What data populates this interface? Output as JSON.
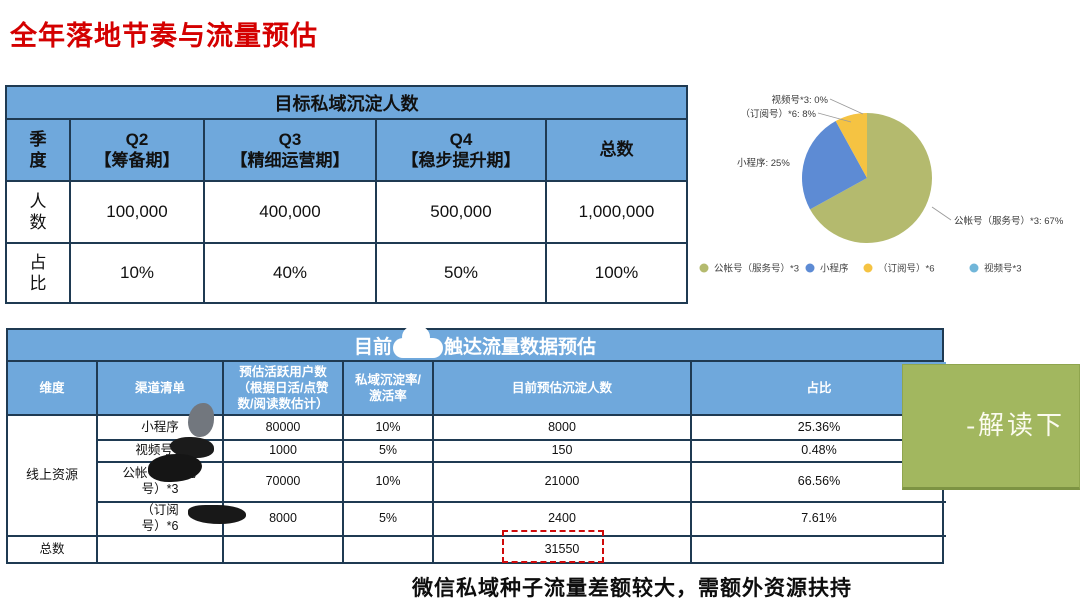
{
  "page_title": "全年落地节奏与流量预估",
  "colors": {
    "accent_blue": "#6fa8dc",
    "table_border": "#1f3a52",
    "title_red": "#d40000",
    "green_box": "#a2b75f",
    "dashed_red": "#cf0a0a"
  },
  "table1": {
    "title": "目标私域沉淀人数",
    "corner_header": "季\n度",
    "col_headers": [
      "Q2\n【筹备期】",
      "Q3\n【精细运营期】",
      "Q4\n【稳步提升期】",
      "总数"
    ],
    "rows": [
      {
        "label": "人\n数",
        "values": [
          "100,000",
          "400,000",
          "500,000",
          "1,000,000"
        ]
      },
      {
        "label": "占\n比",
        "values": [
          "10%",
          "40%",
          "50%",
          "100%"
        ]
      }
    ]
  },
  "chart_data": {
    "type": "pie",
    "title": "",
    "labels": [
      "公帐号（服务号）*3",
      "小程序",
      "（订阅号）*6",
      "视频号*3"
    ],
    "values": [
      67,
      25,
      8,
      0
    ],
    "colors": [
      "#b4ba6e",
      "#5d8bd4",
      "#f5c342",
      "#71b6d9"
    ],
    "callouts": [
      "视频号*3: 0%",
      "（订阅号）*6: 8%",
      "小程序: 25%",
      "公帐号（服务号）*3: 67%"
    ],
    "legend_position": "bottom"
  },
  "table2": {
    "title_prefix": "目前",
    "title_suffix": "触达流量数据预估",
    "headers": {
      "dimension": "维度",
      "channel": "渠道清单",
      "active_users": "预估活跃用户数\n（根据日活/点赞\n数/阅读数估计）",
      "rate": "私域沉淀率/\n激活率",
      "precipitation": "目前预估沉淀人数",
      "share": "占比"
    },
    "dimension_label": "线上资源",
    "rows": [
      {
        "channel": "小程序",
        "active_users": "80000",
        "rate": "10%",
        "precipitation": "8000",
        "share": "25.36%"
      },
      {
        "channel": "视频号*3",
        "active_users": "1000",
        "rate": "5%",
        "precipitation": "150",
        "share": "0.48%"
      },
      {
        "channel": "公帐号（服务\n号）*3",
        "active_users": "70000",
        "rate": "10%",
        "precipitation": "21000",
        "share": "66.56%"
      },
      {
        "channel": "（订阅\n号）*6",
        "active_users": "8000",
        "rate": "5%",
        "precipitation": "2400",
        "share": "7.61%"
      }
    ],
    "total_row": {
      "label": "总数",
      "precipitation": "31550"
    }
  },
  "green_box": {
    "text": "-解读下"
  },
  "footer_note": "微信私域种子流量差额较大，需额外资源扶持"
}
